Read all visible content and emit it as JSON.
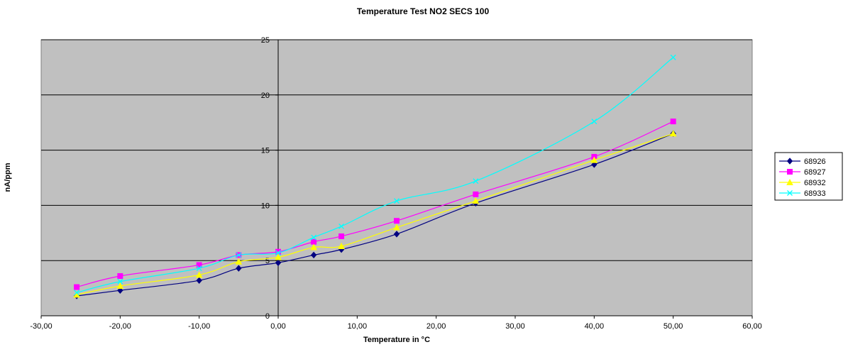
{
  "chart_data": {
    "type": "line",
    "title": "Temperature Test NO2 SECS 100",
    "xlabel": "Temperature in °C",
    "ylabel": "nA/ppm",
    "xlim": [
      -30,
      60
    ],
    "ylim": [
      0,
      25
    ],
    "x_ticks": [
      "-30,00",
      "-20,00",
      "-10,00",
      "0,00",
      "10,00",
      "20,00",
      "30,00",
      "40,00",
      "50,00",
      "60,00"
    ],
    "y_ticks": [
      "0",
      "5",
      "10",
      "15",
      "20",
      "25"
    ],
    "grid": "horizontal",
    "legend_position": "right",
    "plot_background": "#c0c0c0",
    "series": [
      {
        "name": "68926",
        "color": "#000080",
        "marker": "diamond",
        "points": [
          [
            -25.5,
            1.8
          ],
          [
            -20,
            2.3
          ],
          [
            -10,
            3.2
          ],
          [
            -5,
            4.3
          ],
          [
            0,
            4.8
          ],
          [
            4.5,
            5.5
          ],
          [
            8,
            6.0
          ],
          [
            15,
            7.4
          ],
          [
            25,
            10.2
          ],
          [
            40,
            13.7
          ],
          [
            50,
            16.5
          ]
        ]
      },
      {
        "name": "68927",
        "color": "#ff00ff",
        "marker": "square",
        "points": [
          [
            -25.5,
            2.6
          ],
          [
            -20,
            3.6
          ],
          [
            -10,
            4.6
          ],
          [
            -5,
            5.5
          ],
          [
            0,
            5.8
          ],
          [
            4.5,
            6.7
          ],
          [
            8,
            7.2
          ],
          [
            15,
            8.6
          ],
          [
            25,
            11.0
          ],
          [
            40,
            14.4
          ],
          [
            50,
            17.6
          ]
        ]
      },
      {
        "name": "68932",
        "color": "#ffff00",
        "marker": "triangle",
        "points": [
          [
            -25.5,
            1.9
          ],
          [
            -20,
            2.7
          ],
          [
            -10,
            3.7
          ],
          [
            -5,
            4.9
          ],
          [
            0,
            5.3
          ],
          [
            4.5,
            6.2
          ],
          [
            8,
            6.3
          ],
          [
            15,
            8.0
          ],
          [
            25,
            10.4
          ],
          [
            40,
            14.1
          ],
          [
            50,
            16.5
          ]
        ]
      },
      {
        "name": "68933",
        "color": "#00ffff",
        "marker": "x",
        "points": [
          [
            -25.5,
            2.1
          ],
          [
            -20,
            3.1
          ],
          [
            -10,
            4.3
          ],
          [
            -5,
            5.5
          ],
          [
            0,
            5.7
          ],
          [
            4.5,
            7.1
          ],
          [
            8,
            8.1
          ],
          [
            15,
            10.4
          ],
          [
            25,
            12.2
          ],
          [
            40,
            17.6
          ],
          [
            50,
            23.4
          ]
        ]
      }
    ]
  }
}
